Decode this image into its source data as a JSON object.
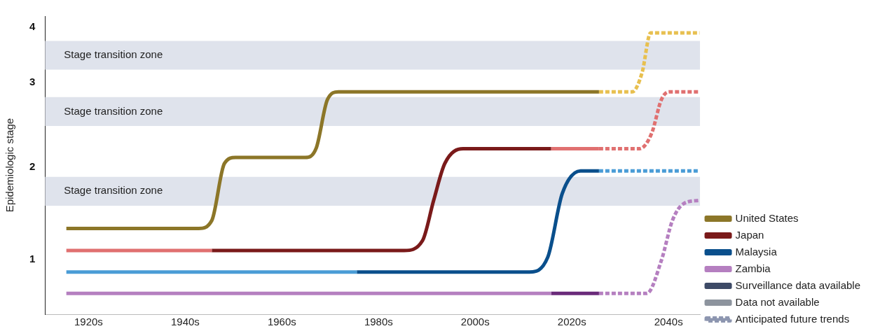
{
  "chart_data": {
    "type": "line",
    "ylabel": "Epidemiologic stage",
    "line_style": "solid",
    "legend": "bottom right",
    "xlim": [
      1911,
      2046.5
    ],
    "ylim": [
      0,
      4.45
    ],
    "xticks": [
      {
        "value": 1920,
        "label": "1920s"
      },
      {
        "value": 1940,
        "label": "1940s"
      },
      {
        "value": 1960,
        "label": "1960s"
      },
      {
        "value": 1980,
        "label": "1980s"
      },
      {
        "value": 2000,
        "label": "2000s"
      },
      {
        "value": 2020,
        "label": "2020s"
      },
      {
        "value": 2040,
        "label": "2040s"
      }
    ],
    "yticks": [
      {
        "value": 0.82,
        "label": "1"
      },
      {
        "value": 2.19,
        "label": "2"
      },
      {
        "value": 3.46,
        "label": "3"
      },
      {
        "value": 4.28,
        "label": "4"
      }
    ],
    "bands": [
      {
        "axis": "y",
        "from": 3.65,
        "to": 4.08,
        "label": "Stage transition zone",
        "color": "#dfe3ec"
      },
      {
        "axis": "y",
        "from": 2.81,
        "to": 3.24,
        "label": "Stage transition zone",
        "color": "#dfe3ec"
      },
      {
        "axis": "y",
        "from": 1.62,
        "to": 2.05,
        "label": "Stage transition zone",
        "color": "#dfe3ec"
      }
    ],
    "series": [
      {
        "name": "United States",
        "color": "#8c7628",
        "x": [
          1915.4,
          1942.8,
          1945.5,
          1948.1,
          1950.4,
          1964.8,
          1967.1,
          1969.4,
          1971.7,
          2025.6
        ],
        "values": [
          1.28,
          1.28,
          1.4,
          2.25,
          2.34,
          2.34,
          2.48,
          3.2,
          3.32,
          3.32
        ]
      },
      {
        "color": "#e8c050",
        "line_style": "dashed",
        "x": [
          2025.6,
          2032.5,
          2034.5,
          2036.3,
          2046.4
        ],
        "values": [
          3.32,
          3.32,
          3.6,
          4.2,
          4.2
        ]
      },
      {
        "color": "#e07070",
        "x": [
          1915.4,
          1945.5
        ],
        "values": [
          0.95,
          0.95
        ]
      },
      {
        "name": "Japan",
        "color": "#7a1a1a",
        "x": [
          1945.5,
          1985.3,
          1989.1,
          1991.4,
          1993.7,
          1997.5,
          2015.7
        ],
        "values": [
          0.95,
          0.95,
          1.1,
          1.7,
          2.25,
          2.47,
          2.47
        ]
      },
      {
        "color": "#e07070",
        "x": [
          2015.7,
          2025.6
        ],
        "values": [
          2.47,
          2.47
        ]
      },
      {
        "color": "#e07070",
        "line_style": "dashed",
        "x": [
          2025.6,
          2034,
          2036.5,
          2038.5,
          2040.1,
          2046.4
        ],
        "values": [
          2.47,
          2.47,
          2.7,
          3.2,
          3.32,
          3.32
        ]
      },
      {
        "color": "#4a9cd6",
        "x": [
          1915.4,
          1975.5
        ],
        "values": [
          0.63,
          0.63
        ]
      },
      {
        "name": "Malaysia",
        "color": "#0a4f8c",
        "x": [
          1975.5,
          2011.2,
          2015,
          2018,
          2021.8,
          2025.6
        ],
        "values": [
          0.63,
          0.63,
          0.85,
          1.8,
          2.14,
          2.14
        ]
      },
      {
        "color": "#4a9cd6",
        "line_style": "dashed",
        "x": [
          2025.6,
          2046.4
        ],
        "values": [
          2.14,
          2.14
        ]
      },
      {
        "name": "Zambia",
        "color": "#b57fc0",
        "x": [
          1915.4,
          2015.7
        ],
        "values": [
          0.31,
          0.31
        ]
      },
      {
        "color": "#6a2a7a",
        "x": [
          2015.7,
          2025.6
        ],
        "values": [
          0.31,
          0.31
        ]
      },
      {
        "color": "#b57fc0",
        "line_style": "dashed",
        "x": [
          2025.6,
          2035.5,
          2038.5,
          2040.8,
          2043.1,
          2046.4
        ],
        "values": [
          0.31,
          0.31,
          0.8,
          1.4,
          1.65,
          1.7
        ]
      },
      {
        "name": "Surveillance data available",
        "color": "#3d4a66"
      },
      {
        "name": "Data not available",
        "color": "#8d949e"
      },
      {
        "name": "Anticipated future trends",
        "color": "#8d96b0",
        "line_style": "dashed"
      }
    ]
  }
}
